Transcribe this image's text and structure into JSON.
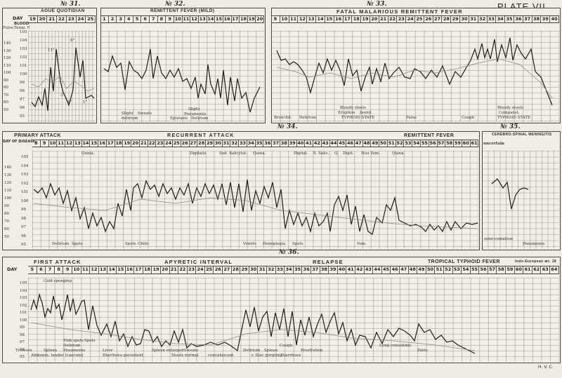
{
  "plate_title": "PLATE VII.",
  "signature": "H. V. C.",
  "charts": {
    "c31": {
      "number": "№ 31.",
      "title": "AGUE QUOTIDIAN",
      "day_label": "DAY",
      "days": [
        "19",
        "20",
        "21",
        "22",
        "23",
        "24",
        "25"
      ],
      "blood_label": "BLOOD",
      "pulse_label": "Pulse",
      "temp_label": "Temp. F.",
      "annotations": [
        "11°",
        "3°",
        "1°",
        "1°",
        "8°"
      ]
    },
    "c32": {
      "number": "№ 32.",
      "title": "REMITTENT FEVER (MILD)",
      "days": [
        "1",
        "2",
        "3",
        "4",
        "5",
        "6",
        "7",
        "8",
        "9",
        "10",
        "11",
        "12",
        "13",
        "14",
        "15",
        "16",
        "17",
        "18",
        "19",
        "20"
      ],
      "notes": [
        "Slight",
        "Sweats",
        "delirium",
        "Slight",
        "Pneumonia",
        "Epistaxis",
        "Delirium"
      ]
    },
    "c33": {
      "number": "№ 33.",
      "title": "FATAL MALARIOUS REMITTENT FEVER",
      "days": [
        "9",
        "10",
        "11",
        "12",
        "13",
        "14",
        "15",
        "16",
        "17",
        "18",
        "19",
        "20",
        "21",
        "22",
        "23",
        "24",
        "25",
        "26",
        "27",
        "28",
        "29",
        "30",
        "31",
        "32",
        "33",
        "34",
        "35",
        "36",
        "37",
        "38",
        "39",
        "40"
      ],
      "notes": [
        "Bronchit.",
        "Delirium",
        "Bloody stools",
        "Eruption",
        "Jaund.",
        "TYPHOID STATE",
        "Pains",
        "Cough",
        "Hiccough",
        "Dysentery",
        "Comparat.",
        "Bloody stools",
        "TYPHOID STATE"
      ]
    },
    "c34": {
      "number": "№ 34.",
      "primary": "PRIMARY ATTACK",
      "recurrent": "RECURRENT ATTACK",
      "remittent": "REMITTENT FEVER",
      "day_label": "DAY OF DISEASE",
      "days": [
        "8",
        "9",
        "10",
        "11",
        "12",
        "13",
        "14",
        "15",
        "16",
        "17",
        "18",
        "19",
        "20",
        "21",
        "22",
        "23",
        "24",
        "25",
        "26",
        "27",
        "28",
        "29",
        "30",
        "31",
        "32",
        "33",
        "34",
        "35",
        "36",
        "37",
        "38",
        "39",
        "40",
        "41",
        "42",
        "43",
        "44",
        "45",
        "46",
        "47",
        "48",
        "49",
        "50",
        "51",
        "52",
        "53",
        "54",
        "55",
        "56",
        "57",
        "58",
        "59",
        "60",
        "61"
      ],
      "drugs": [
        "Quina.",
        "Digitalis",
        "Sod. Salicylat.",
        "Quina.",
        "Digital.",
        "S. Salic.",
        "Q.",
        "Digit.",
        "Nux Vom.",
        "Quina."
      ],
      "bottom_notes": [
        "Delirium",
        "Spots",
        "Spots",
        "Chills",
        "Vomits",
        "Hemiplegia",
        "Spots",
        "Vom."
      ]
    },
    "c35": {
      "number": "№ 35.",
      "title": "CEREBRO-SPINAL MENINGITIS",
      "sub": "uncertain",
      "bottom": "Pneumonia",
      "bottom2": "semi-comatose"
    },
    "c36": {
      "number": "№ 36.",
      "first_attack": "FIRST ATTACK",
      "apyretic": "APYRETIC INTERVAL",
      "relapse": "RELAPSE",
      "typhoid": "TROPICAL TYPHOID FEVER",
      "typhoid_sub": "Indo-European æt. 18",
      "day_label": "DAY",
      "days": [
        "5",
        "6",
        "7",
        "8",
        "9",
        "10",
        "11",
        "12",
        "13",
        "14",
        "15",
        "16",
        "17",
        "18",
        "19",
        "20",
        "21",
        "22",
        "23",
        "24",
        "25",
        "26",
        "27",
        "28",
        "29",
        "30",
        "31",
        "32",
        "33",
        "34",
        "35",
        "36",
        "37",
        "38",
        "39",
        "40",
        "41",
        "42",
        "43",
        "44",
        "45",
        "46",
        "47",
        "48",
        "49",
        "50",
        "51",
        "52",
        "53",
        "54",
        "55",
        "56",
        "57",
        "58",
        "59",
        "60",
        "61",
        "62",
        "63",
        "64"
      ],
      "notes_top": [
        "Cold sponging"
      ],
      "notes_bottom": [
        "Tremors",
        "Spleen",
        "Pneumonia",
        "Abdomin. tender (caecum)",
        "Pink spots",
        "Delirium",
        "Spots",
        "Liver",
        "Diarrhoea persistent",
        "Spleen enlarged",
        "Sweats",
        "Stools normal",
        "convalescent",
        "Delirium",
        "Spleen",
        "Cough",
        "r. Iliac gurgling",
        "Prostration",
        "Diarrhoea",
        "Lung consolidat.",
        "Pains"
      ]
    }
  },
  "temperature_scale": [
    "105",
    "104",
    "103",
    "102",
    "101",
    "100",
    "99",
    "98",
    "97",
    "96",
    "95"
  ],
  "pulse_scale": [
    "140",
    "130",
    "120",
    "110",
    "100",
    "90",
    "80",
    "70",
    "60",
    "50"
  ]
}
